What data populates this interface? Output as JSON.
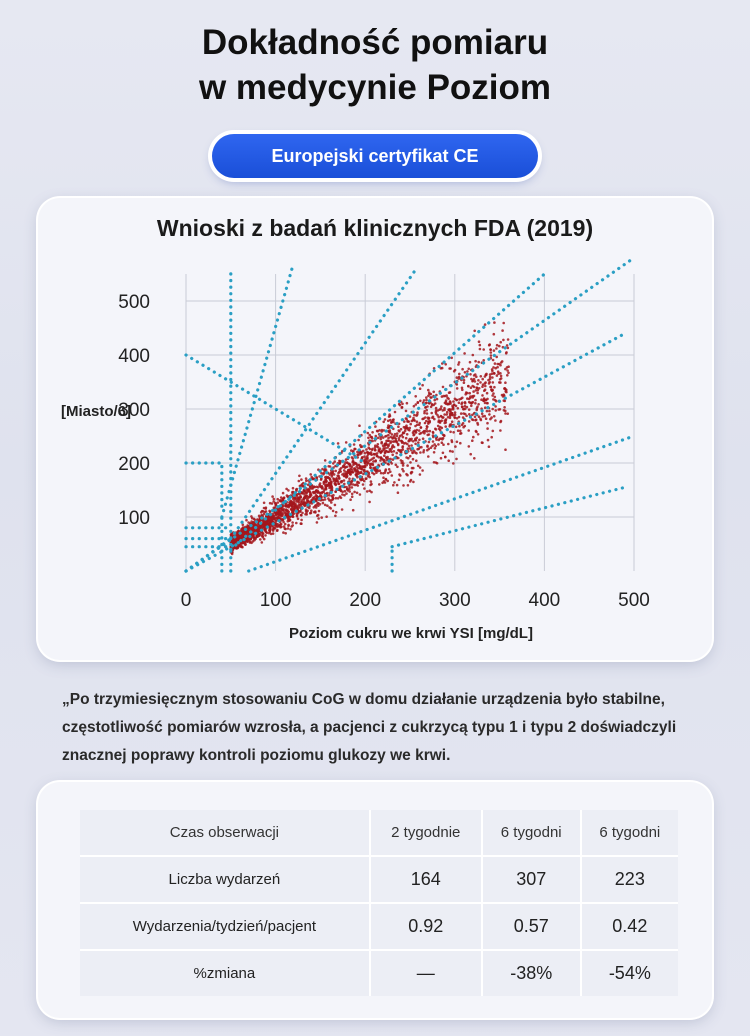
{
  "title_line1": "Dokładność pomiaru",
  "title_line2": "w medycynie Poziom",
  "badge": "Europejski certyfikat CE",
  "quote": "„Po trzymiesięcznym stosowaniu CoG w domu działanie urządzenia było stabilne, częstotliwość pomiarów wzrosła, a pacjenci z cukrzycą typu 1 i typu 2 doświadczyli znacznej poprawy kontroli poziomu glukozy we krwi.",
  "chart_data": {
    "type": "scatter",
    "title": "Wnioski z badań klinicznych FDA (2019)",
    "xlabel": "Poziom cukru we krwi YSI [mg/dL]",
    "ylabel": "[Miasto/6]",
    "xlim": [
      0,
      500
    ],
    "ylim": [
      0,
      550
    ],
    "xticks": [
      0,
      100,
      200,
      300,
      400,
      500
    ],
    "yticks": [
      100,
      200,
      300,
      400,
      500
    ],
    "grid": true,
    "point_color": "#a3161c",
    "zone_line_color": "#2a9fc4",
    "point_cloud": {
      "n": 2600,
      "x_range": [
        50,
        360
      ],
      "y_ratio_mean": 1.0,
      "y_ratio_spread": 0.2,
      "seed": 7
    },
    "zone_lines": [
      {
        "x": [
          0,
          200
        ],
        "y": [
          400,
          200
        ]
      },
      {
        "x": [
          40,
          40
        ],
        "y": [
          0,
          100
        ]
      },
      {
        "x": [
          40,
          120
        ],
        "y": [
          100,
          570
        ]
      },
      {
        "x": [
          40,
          40
        ],
        "y": [
          120,
          200
        ]
      },
      {
        "x": [
          0,
          40
        ],
        "y": [
          200,
          200
        ]
      },
      {
        "x": [
          50,
          50
        ],
        "y": [
          0,
          560
        ]
      },
      {
        "x": [
          0,
          50
        ],
        "y": [
          80,
          80
        ]
      },
      {
        "x": [
          0,
          50
        ],
        "y": [
          60,
          60
        ]
      },
      {
        "x": [
          0,
          50
        ],
        "y": [
          45,
          45
        ]
      },
      {
        "x": [
          0,
          50
        ],
        "y": [
          0,
          60
        ]
      },
      {
        "x": [
          50,
          255
        ],
        "y": [
          60,
          555
        ]
      },
      {
        "x": [
          50,
          400
        ],
        "y": [
          40,
          550
        ]
      },
      {
        "x": [
          0,
          500
        ],
        "y": [
          0,
          580
        ]
      },
      {
        "x": [
          0,
          490
        ],
        "y": [
          0,
          440
        ]
      },
      {
        "x": [
          70,
          500
        ],
        "y": [
          0,
          250
        ]
      },
      {
        "x": [
          230,
          490
        ],
        "y": [
          45,
          155
        ]
      },
      {
        "x": [
          230,
          230
        ],
        "y": [
          0,
          45
        ]
      }
    ]
  },
  "table": {
    "header": [
      "Czas obserwacji",
      "2 tygodnie",
      "6 tygodni",
      "6 tygodni"
    ],
    "rows": [
      {
        "label": "Liczba wydarzeń",
        "values": [
          "164",
          "307",
          "223"
        ]
      },
      {
        "label": "Wydarzenia/tydzień/pacjent",
        "values": [
          "0.92",
          "0.57",
          "0.42"
        ]
      },
      {
        "label": "%zmiana",
        "values": [
          "—",
          "-38%",
          "-54%"
        ]
      }
    ]
  }
}
